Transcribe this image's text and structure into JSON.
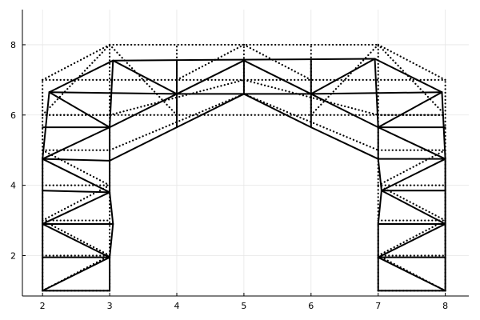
{
  "chart_data": {
    "type": "line",
    "xlim": [
      1.7,
      8.35
    ],
    "ylim": [
      0.85,
      9.0
    ],
    "x_ticks": [
      2,
      3,
      4,
      5,
      6,
      7,
      8
    ],
    "y_ticks": [
      2,
      4,
      6,
      8
    ],
    "grid": true,
    "legend": "none",
    "series": [
      {
        "style": "dotted",
        "segments": [
          [
            [
              2,
              1
            ],
            [
              3,
              1
            ]
          ],
          [
            [
              7,
              1
            ],
            [
              8,
              1
            ]
          ],
          [
            [
              2,
              1
            ],
            [
              2,
              7
            ]
          ],
          [
            [
              3,
              1
            ],
            [
              3,
              8
            ]
          ],
          [
            [
              7,
              1
            ],
            [
              7,
              8
            ]
          ],
          [
            [
              8,
              1
            ],
            [
              8,
              7
            ]
          ],
          [
            [
              2,
              2
            ],
            [
              3,
              2
            ]
          ],
          [
            [
              7,
              2
            ],
            [
              8,
              2
            ]
          ],
          [
            [
              2,
              3
            ],
            [
              3,
              3
            ]
          ],
          [
            [
              7,
              3
            ],
            [
              8,
              3
            ]
          ],
          [
            [
              2,
              4
            ],
            [
              3,
              4
            ]
          ],
          [
            [
              7,
              4
            ],
            [
              8,
              4
            ]
          ],
          [
            [
              2,
              5
            ],
            [
              3,
              5
            ]
          ],
          [
            [
              7,
              5
            ],
            [
              8,
              5
            ]
          ],
          [
            [
              2,
              6
            ],
            [
              3,
              6
            ]
          ],
          [
            [
              7,
              6
            ],
            [
              8,
              6
            ]
          ],
          [
            [
              2,
              7
            ],
            [
              8,
              7
            ]
          ],
          [
            [
              3,
              8
            ],
            [
              7,
              8
            ]
          ],
          [
            [
              2,
              6
            ],
            [
              3,
              8
            ]
          ],
          [
            [
              7,
              8
            ],
            [
              8,
              6
            ]
          ],
          [
            [
              2,
              7
            ],
            [
              3,
              8
            ]
          ],
          [
            [
              7,
              8
            ],
            [
              8,
              7
            ]
          ],
          [
            [
              2,
              6
            ],
            [
              8,
              6
            ]
          ],
          [
            [
              3,
              6
            ],
            [
              5,
              7
            ]
          ],
          [
            [
              5,
              7
            ],
            [
              7,
              6
            ]
          ],
          [
            [
              3,
              5
            ],
            [
              5,
              6.6
            ]
          ],
          [
            [
              5,
              6.6
            ],
            [
              7,
              5
            ]
          ],
          [
            [
              3,
              8
            ],
            [
              4,
              6
            ]
          ],
          [
            [
              4,
              6
            ],
            [
              4,
              8
            ]
          ],
          [
            [
              6,
              6
            ],
            [
              6,
              8
            ]
          ],
          [
            [
              6,
              6
            ],
            [
              7,
              8
            ]
          ],
          [
            [
              4,
              7
            ],
            [
              5,
              8
            ]
          ],
          [
            [
              5,
              8
            ],
            [
              6,
              7
            ]
          ],
          [
            [
              5,
              6.6
            ],
            [
              5,
              8
            ]
          ],
          [
            [
              2,
              1
            ],
            [
              3,
              2
            ]
          ],
          [
            [
              2,
              3
            ],
            [
              3,
              2
            ]
          ],
          [
            [
              2,
              3
            ],
            [
              3,
              4
            ]
          ],
          [
            [
              2,
              5
            ],
            [
              3,
              4
            ]
          ],
          [
            [
              7,
              2
            ],
            [
              8,
              1
            ]
          ],
          [
            [
              7,
              2
            ],
            [
              8,
              3
            ]
          ],
          [
            [
              7,
              4
            ],
            [
              8,
              3
            ]
          ],
          [
            [
              7,
              4
            ],
            [
              8,
              5
            ]
          ]
        ]
      },
      {
        "style": "solid",
        "segments": [
          [
            [
              2,
              1
            ],
            [
              3,
              1
            ]
          ],
          [
            [
              7,
              1
            ],
            [
              8,
              1
            ]
          ],
          [
            [
              2,
              1
            ],
            [
              2,
              1.95
            ]
          ],
          [
            [
              2,
              1.95
            ],
            [
              2,
              2.9
            ]
          ],
          [
            [
              2,
              2.9
            ],
            [
              2,
              3.85
            ]
          ],
          [
            [
              2,
              3.85
            ],
            [
              2,
              4.75
            ]
          ],
          [
            [
              2,
              4.75
            ],
            [
              2.1,
              6.65
            ]
          ],
          [
            [
              3,
              1
            ],
            [
              3,
              1.95
            ]
          ],
          [
            [
              3,
              1.95
            ],
            [
              3.05,
              2.9
            ]
          ],
          [
            [
              3.05,
              2.9
            ],
            [
              3,
              3.8
            ]
          ],
          [
            [
              3,
              3.8
            ],
            [
              3,
              4.7
            ]
          ],
          [
            [
              3,
              4.7
            ],
            [
              3,
              5.65
            ]
          ],
          [
            [
              3,
              5.65
            ],
            [
              3.05,
              7.55
            ]
          ],
          [
            [
              7,
              1
            ],
            [
              7,
              1.95
            ]
          ],
          [
            [
              7,
              1.95
            ],
            [
              7,
              2.9
            ]
          ],
          [
            [
              7,
              2.9
            ],
            [
              7.05,
              3.85
            ]
          ],
          [
            [
              7.05,
              3.85
            ],
            [
              7,
              4.75
            ]
          ],
          [
            [
              7,
              4.75
            ],
            [
              7,
              5.65
            ]
          ],
          [
            [
              7,
              5.65
            ],
            [
              6.95,
              7.6
            ]
          ],
          [
            [
              8,
              1
            ],
            [
              8,
              1.95
            ]
          ],
          [
            [
              8,
              1.95
            ],
            [
              8,
              2.9
            ]
          ],
          [
            [
              8,
              2.9
            ],
            [
              8,
              3.85
            ]
          ],
          [
            [
              8,
              3.85
            ],
            [
              8,
              4.75
            ]
          ],
          [
            [
              8,
              4.75
            ],
            [
              7.95,
              6.65
            ]
          ],
          [
            [
              2,
              1.95
            ],
            [
              3,
              1.95
            ]
          ],
          [
            [
              7,
              1.95
            ],
            [
              8,
              1.95
            ]
          ],
          [
            [
              2,
              2.9
            ],
            [
              3.05,
              2.9
            ]
          ],
          [
            [
              7,
              2.9
            ],
            [
              8,
              2.9
            ]
          ],
          [
            [
              2,
              3.85
            ],
            [
              3,
              3.8
            ]
          ],
          [
            [
              7.05,
              3.85
            ],
            [
              8,
              3.85
            ]
          ],
          [
            [
              2,
              4.75
            ],
            [
              3,
              4.7
            ]
          ],
          [
            [
              7,
              4.75
            ],
            [
              8,
              4.75
            ]
          ],
          [
            [
              2,
              5.65
            ],
            [
              3,
              5.65
            ]
          ],
          [
            [
              7,
              5.65
            ],
            [
              8,
              5.65
            ]
          ],
          [
            [
              2.1,
              6.65
            ],
            [
              4,
              6.6
            ]
          ],
          [
            [
              6,
              6.6
            ],
            [
              7.95,
              6.65
            ]
          ],
          [
            [
              3.05,
              7.55
            ],
            [
              6.95,
              7.6
            ]
          ],
          [
            [
              2.1,
              6.65
            ],
            [
              3.05,
              7.55
            ]
          ],
          [
            [
              6.95,
              7.6
            ],
            [
              7.95,
              6.65
            ]
          ],
          [
            [
              3,
              5.65
            ],
            [
              4,
              6.6
            ]
          ],
          [
            [
              4,
              6.6
            ],
            [
              5,
              6.6
            ]
          ],
          [
            [
              5,
              6.6
            ],
            [
              6,
              6.6
            ]
          ],
          [
            [
              6,
              6.6
            ],
            [
              7,
              5.65
            ]
          ],
          [
            [
              3,
              4.7
            ],
            [
              4,
              5.65
            ]
          ],
          [
            [
              4,
              5.65
            ],
            [
              5,
              6.6
            ]
          ],
          [
            [
              5,
              6.6
            ],
            [
              6,
              5.65
            ]
          ],
          [
            [
              6,
              5.65
            ],
            [
              7,
              4.75
            ]
          ],
          [
            [
              4,
              5.65
            ],
            [
              4,
              6.6
            ]
          ],
          [
            [
              6,
              5.65
            ],
            [
              6,
              6.6
            ]
          ],
          [
            [
              4,
              6.6
            ],
            [
              4,
              7.55
            ]
          ],
          [
            [
              6,
              6.6
            ],
            [
              6,
              7.55
            ]
          ],
          [
            [
              3.05,
              7.55
            ],
            [
              4,
              6.6
            ]
          ],
          [
            [
              6,
              6.6
            ],
            [
              6.95,
              7.6
            ]
          ],
          [
            [
              4,
              6.6
            ],
            [
              5,
              7.55
            ]
          ],
          [
            [
              5,
              7.55
            ],
            [
              6,
              6.6
            ]
          ],
          [
            [
              5,
              6.6
            ],
            [
              5,
              7.55
            ]
          ],
          [
            [
              2,
              1
            ],
            [
              3,
              1.95
            ]
          ],
          [
            [
              2,
              2.9
            ],
            [
              3,
              1.95
            ]
          ],
          [
            [
              2,
              2.9
            ],
            [
              3,
              3.8
            ]
          ],
          [
            [
              2,
              4.75
            ],
            [
              3,
              3.8
            ]
          ],
          [
            [
              2,
              4.75
            ],
            [
              3,
              5.65
            ]
          ],
          [
            [
              2.1,
              6.65
            ],
            [
              3,
              5.65
            ]
          ],
          [
            [
              7,
              1.95
            ],
            [
              8,
              1
            ]
          ],
          [
            [
              7,
              1.95
            ],
            [
              8,
              2.9
            ]
          ],
          [
            [
              7.05,
              3.85
            ],
            [
              8,
              2.9
            ]
          ],
          [
            [
              7.05,
              3.85
            ],
            [
              8,
              4.75
            ]
          ],
          [
            [
              7,
              5.65
            ],
            [
              8,
              4.75
            ]
          ],
          [
            [
              7,
              5.65
            ],
            [
              7.95,
              6.65
            ]
          ]
        ]
      }
    ]
  }
}
